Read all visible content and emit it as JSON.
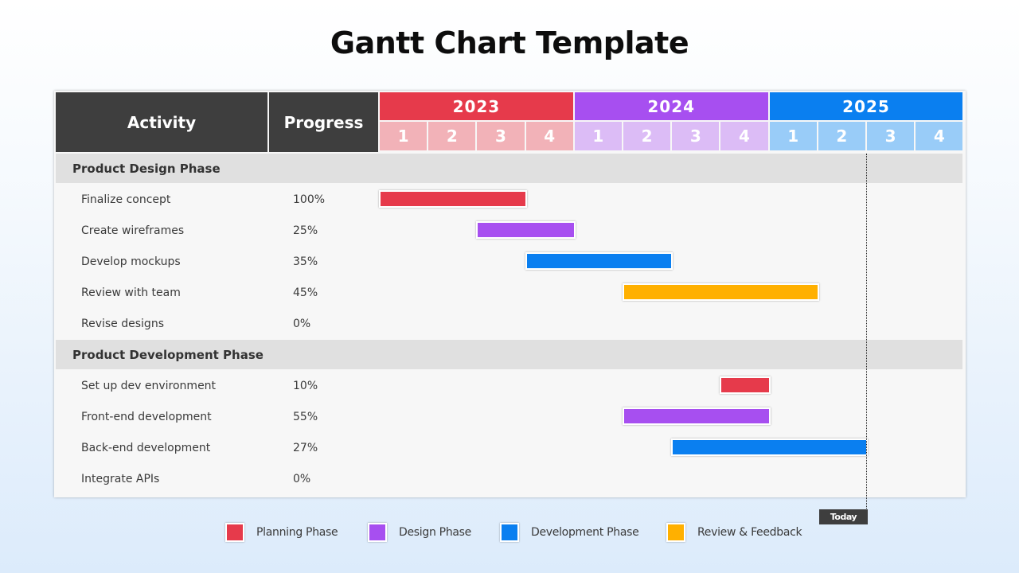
{
  "title": "Gantt Chart Template",
  "colors": {
    "header_dark": "#3e3e3e",
    "planning": "#e63a4b",
    "design": "#a74ff0",
    "development": "#0a7ff0",
    "review": "#ffb000"
  },
  "chart_data": {
    "type": "gantt",
    "headers": {
      "activity": "Activity",
      "progress": "Progress"
    },
    "years": [
      {
        "label": "2023",
        "color": "#e63a4b",
        "quarter_color": "#f2b2b8"
      },
      {
        "label": "2024",
        "color": "#a74ff0",
        "quarter_color": "#dcbcf6"
      },
      {
        "label": "2025",
        "color": "#0a7ff0",
        "quarter_color": "#99ccf8"
      }
    ],
    "quarters": [
      "1",
      "2",
      "3",
      "4"
    ],
    "time_axis": {
      "start": "2023-Q1",
      "end": "2025-Q4",
      "total_quarters": 12
    },
    "groups": [
      {
        "phase": "Product Design Phase",
        "tasks": [
          {
            "name": "Finalize concept",
            "progress": "100%",
            "start": 0,
            "end": 3,
            "category": "planning"
          },
          {
            "name": "Create wireframes",
            "progress": "25%",
            "start": 2,
            "end": 4,
            "category": "design"
          },
          {
            "name": "Develop mockups",
            "progress": "35%",
            "start": 3,
            "end": 6,
            "category": "development"
          },
          {
            "name": "Review with team",
            "progress": "45%",
            "start": 5,
            "end": 9,
            "category": "review"
          },
          {
            "name": "Revise designs",
            "progress": "0%",
            "start": null,
            "end": null,
            "category": null
          }
        ]
      },
      {
        "phase": "Product Development Phase",
        "tasks": [
          {
            "name": "Set up dev environment",
            "progress": "10%",
            "start": 7,
            "end": 8,
            "category": "planning"
          },
          {
            "name": "Front-end development",
            "progress": "55%",
            "start": 5,
            "end": 8,
            "category": "design"
          },
          {
            "name": "Back-end development",
            "progress": "27%",
            "start": 6,
            "end": 10,
            "category": "development"
          },
          {
            "name": "Integrate APIs",
            "progress": "0%",
            "start": null,
            "end": null,
            "category": null
          }
        ]
      }
    ],
    "today": {
      "label": "Today",
      "position": 10
    },
    "legend": [
      {
        "key": "planning",
        "label": "Planning Phase"
      },
      {
        "key": "design",
        "label": "Design Phase"
      },
      {
        "key": "development",
        "label": "Development Phase"
      },
      {
        "key": "review",
        "label": "Review & Feedback"
      }
    ]
  }
}
